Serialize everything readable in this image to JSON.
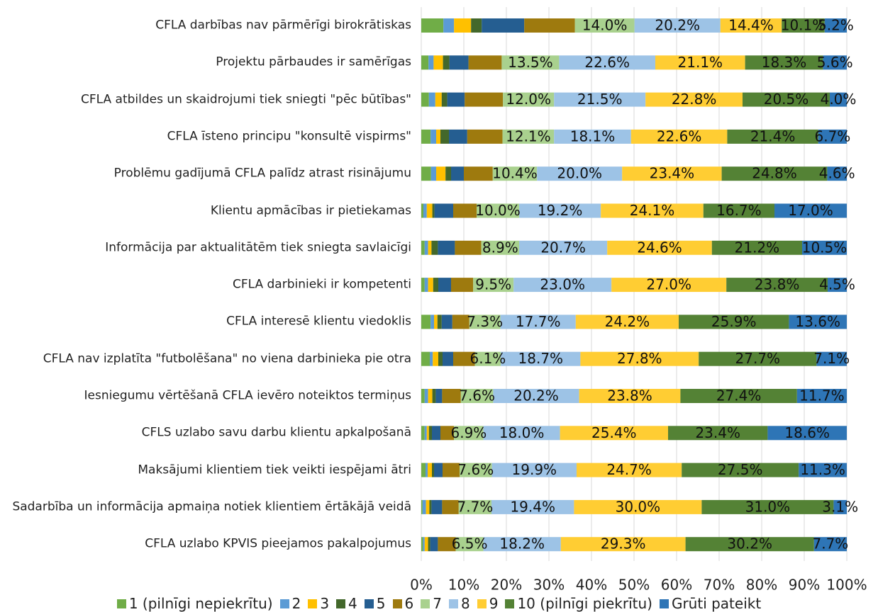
{
  "chart_data": {
    "type": "stacked-barh",
    "categories": [
      "CFLA darbības nav pārmērīgi birokrātiskas",
      "Projektu pārbaudes ir samērīgas",
      "CFLA atbildes un skaidrojumi tiek sniegti \"pēc būtības\"",
      "CFLA īsteno principu \"konsultē vispirms\"",
      "Problēmu gadījumā CFLA palīdz atrast risinājumu",
      "Klientu apmācības ir pietiekamas",
      "Informācija par aktualitātēm tiek sniegta savlaicīgi",
      "CFLA darbinieki ir kompetenti",
      "CFLA interesē klientu viedoklis",
      "CFLA nav izplatīta \"futbolēšana\" no viena darbinieka pie otra",
      "Iesniegumu vērtēšanā CFLA ievēro noteiktos termiņus",
      "CFLS uzlabo savu darbu klientu apkalpošanā",
      "Maksājumi klientiem tiek veikti iespējami ātri",
      "Sadarbība un informācija apmaiņa notiek klientiem ērtākājā veidā",
      "CFLA uzlabo KPVIS pieejamos pakalpojumus"
    ],
    "series": [
      {
        "name": "1 (pilnīgi nepiekrītu)",
        "color": "#70ad47",
        "values": [
          5.2,
          1.7,
          1.8,
          2.2,
          2.3,
          0.5,
          0.8,
          0.8,
          2.2,
          2.0,
          0.8,
          0.8,
          1.0,
          0.3,
          0.4
        ]
      },
      {
        "name": "2",
        "color": "#5b9bd5",
        "values": [
          2.5,
          1.2,
          1.5,
          1.3,
          1.2,
          0.8,
          0.8,
          0.8,
          0.8,
          0.7,
          0.8,
          0.5,
          0.5,
          0.8,
          0.4
        ]
      },
      {
        "name": "3",
        "color": "#ffc000",
        "values": [
          4.0,
          2.2,
          1.5,
          1.0,
          2.2,
          1.3,
          0.8,
          1.2,
          0.8,
          1.3,
          1.0,
          0.5,
          1.0,
          0.8,
          0.8
        ]
      },
      {
        "name": "4",
        "color": "#43682b",
        "values": [
          2.5,
          1.5,
          1.3,
          2.0,
          1.3,
          0.5,
          1.5,
          1.2,
          1.0,
          1.0,
          0.8,
          0.7,
          0.5,
          0.5,
          0.5
        ]
      },
      {
        "name": "5",
        "color": "#255e91",
        "values": [
          10.0,
          4.5,
          4.1,
          4.3,
          3.0,
          4.4,
          4.0,
          3.0,
          2.5,
          2.5,
          1.5,
          2.0,
          2.0,
          2.5,
          1.8
        ]
      },
      {
        "name": "6",
        "color": "#9e7a0e",
        "values": [
          11.9,
          7.8,
          9.0,
          8.3,
          6.8,
          5.5,
          6.2,
          5.2,
          4.0,
          5.1,
          4.4,
          3.2,
          4.0,
          3.9,
          4.2
        ]
      },
      {
        "name": "7",
        "color": "#a9d18e",
        "values": [
          14.0,
          13.5,
          12.0,
          12.1,
          10.4,
          10.0,
          8.9,
          9.5,
          7.3,
          6.1,
          7.6,
          6.9,
          7.6,
          7.7,
          6.5
        ],
        "value_labels": [
          "14.0%",
          "13.5%",
          "12.0%",
          "12.1%",
          "10.4%",
          "10.0%",
          "8.9%",
          "9.5%",
          "7.3%",
          "6.1%",
          "7.6%",
          "6.9%",
          "7.6%",
          "7.7%",
          "6.5%"
        ]
      },
      {
        "name": "8",
        "color": "#9dc3e6",
        "values": [
          20.2,
          22.6,
          21.5,
          18.1,
          20.0,
          19.2,
          20.7,
          23.0,
          17.7,
          18.7,
          20.2,
          18.0,
          19.9,
          19.4,
          18.2
        ],
        "value_labels": [
          "20.2%",
          "22.6%",
          "21.5%",
          "18.1%",
          "20.0%",
          "19.2%",
          "20.7%",
          "23.0%",
          "17.7%",
          "18.7%",
          "20.2%",
          "18.0%",
          "19.9%",
          "19.4%",
          "18.2%"
        ]
      },
      {
        "name": "9",
        "color": "#ffcd33",
        "values": [
          14.4,
          21.1,
          22.8,
          22.6,
          23.4,
          24.1,
          24.6,
          27.0,
          24.2,
          27.8,
          23.8,
          25.4,
          24.7,
          30.0,
          29.3
        ],
        "value_labels": [
          "14.4%",
          "21.1%",
          "22.8%",
          "22.6%",
          "23.4%",
          "24.1%",
          "24.6%",
          "27.0%",
          "24.2%",
          "27.8%",
          "23.8%",
          "25.4%",
          "24.7%",
          "30.0%",
          "29.3%"
        ]
      },
      {
        "name": "10 (pilnīgi piekrītu)",
        "color": "#548235",
        "values": [
          10.1,
          18.3,
          20.5,
          21.4,
          24.8,
          16.7,
          21.2,
          23.8,
          25.9,
          27.7,
          27.4,
          23.4,
          27.5,
          31.0,
          30.2
        ],
        "value_labels": [
          "10.1%",
          "18.3%",
          "20.5%",
          "21.4%",
          "24.8%",
          "16.7%",
          "21.2%",
          "23.8%",
          "25.9%",
          "27.7%",
          "27.4%",
          "23.4%",
          "27.5%",
          "31.0%",
          "30.2%"
        ]
      },
      {
        "name": "Grūti pateikt",
        "color": "#2e75b6",
        "values": [
          5.2,
          5.6,
          4.0,
          6.7,
          4.6,
          17.0,
          10.5,
          4.5,
          13.6,
          7.1,
          11.7,
          18.6,
          11.3,
          3.1,
          7.7
        ],
        "value_labels": [
          "5.2%",
          "5.6%",
          "4.0%",
          "6.7%",
          "4.6%",
          "17.0%",
          "10.5%",
          "4.5%",
          "13.6%",
          "7.1%",
          "11.7%",
          "18.6%",
          "11.3%",
          "3.1%",
          "7.7%"
        ]
      }
    ],
    "xlim": [
      0,
      100
    ],
    "xticks": [
      {
        "value": 0,
        "label": "0%"
      },
      {
        "value": 10,
        "label": "10%"
      },
      {
        "value": 20,
        "label": "20%"
      },
      {
        "value": 30,
        "label": "30%"
      },
      {
        "value": 40,
        "label": "40%"
      },
      {
        "value": 50,
        "label": "50%"
      },
      {
        "value": 60,
        "label": "60%"
      },
      {
        "value": 70,
        "label": "70%"
      },
      {
        "value": 80,
        "label": "80%"
      },
      {
        "value": 90,
        "label": "90%"
      },
      {
        "value": 100,
        "label": "100%"
      }
    ],
    "grid": true,
    "legend": "bottom"
  }
}
